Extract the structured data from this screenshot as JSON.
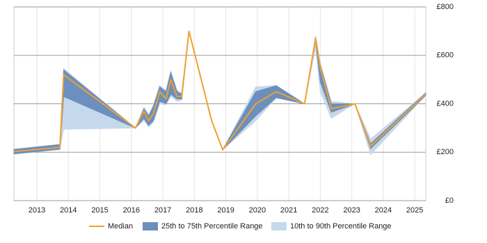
{
  "chart_data": {
    "type": "line",
    "x": [
      2012.27,
      2013.73,
      2013.85,
      2016.13,
      2016.4,
      2016.55,
      2016.7,
      2016.9,
      2017.1,
      2017.25,
      2017.45,
      2017.6,
      2017.83,
      2018.55,
      2018.9,
      2019.95,
      2020.6,
      2021.5,
      2021.85,
      2022.0,
      2022.35,
      2023.1,
      2023.6,
      2025.35
    ],
    "series": [
      {
        "name": "Median",
        "color": "#f0a030",
        "values": [
          203,
          220,
          520,
          300,
          370,
          330,
          360,
          450,
          420,
          500,
          430,
          430,
          700,
          330,
          210,
          400,
          450,
          400,
          670,
          550,
          380,
          400,
          225,
          440
        ]
      }
    ],
    "bands": [
      {
        "name": "10th to 90th Percentile Range",
        "color": "#c6d9ec",
        "lower": [
          193,
          212,
          295,
          300,
          330,
          305,
          325,
          400,
          395,
          430,
          410,
          415,
          700,
          330,
          210,
          330,
          425,
          400,
          630,
          450,
          340,
          400,
          190,
          435
        ],
        "upper": [
          212,
          232,
          545,
          300,
          385,
          355,
          395,
          475,
          455,
          535,
          455,
          445,
          700,
          330,
          210,
          470,
          475,
          400,
          680,
          570,
          410,
          400,
          255,
          445
        ]
      },
      {
        "name": "25th to 75th Percentile Range",
        "color": "#6d8fbd",
        "lower": [
          193,
          212,
          430,
          300,
          340,
          310,
          330,
          410,
          400,
          440,
          420,
          420,
          700,
          330,
          210,
          350,
          425,
          400,
          660,
          490,
          365,
          400,
          215,
          435
        ],
        "upper": [
          212,
          232,
          540,
          300,
          380,
          350,
          390,
          470,
          450,
          530,
          450,
          440,
          700,
          330,
          210,
          450,
          475,
          400,
          675,
          560,
          400,
          400,
          235,
          445
        ]
      }
    ],
    "xlim": [
      2012.27,
      2025.35
    ],
    "xticks": [
      2013,
      2014,
      2015,
      2016,
      2017,
      2018,
      2019,
      2020,
      2021,
      2022,
      2023,
      2024,
      2025
    ],
    "ylim": [
      0,
      800
    ],
    "yticks": [
      {
        "value": 0,
        "label": "£0"
      },
      {
        "value": 200,
        "label": "£200"
      },
      {
        "value": 400,
        "label": "£400"
      },
      {
        "value": 600,
        "label": "£600"
      },
      {
        "value": 800,
        "label": "£800"
      }
    ],
    "grid": true
  }
}
